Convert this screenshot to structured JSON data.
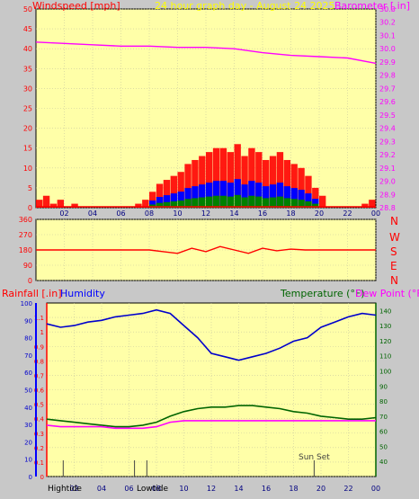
{
  "header": {
    "windspeed_label": "Windspeed [mph]",
    "title": "24 hour graph day - August 24 2025",
    "barometer_label": "Barometer [.in]"
  },
  "bottom_header": {
    "rainfall_label": "Rainfall [.in]",
    "humidity_label": "Humidity",
    "temperature_label": "Temperature (°F)",
    "dewpoint_label": "Dew Point (°F)"
  },
  "compass": [
    "N",
    "W",
    "S",
    "E",
    "N"
  ],
  "time_ticks": [
    "02",
    "04",
    "06",
    "08",
    "10",
    "12",
    "14",
    "16",
    "18",
    "20",
    "22",
    "00"
  ],
  "markers": {
    "hightide": "Hightide",
    "lowtide": "Lowtide",
    "sunset": "Sun Set"
  },
  "colors": {
    "panel_bg": "#ffffa8",
    "frame_bg": "#c8c8c8",
    "wind_avg": "#ff0000",
    "wind_gust_mid": "#0000ff",
    "wind_gust_low": "#008000",
    "barometer": "#ff00ff",
    "direction": "#ff0000",
    "humidity": "#0000cc",
    "temperature": "#006400",
    "dewpoint": "#ff00ff",
    "rain_axis": "#ff0000",
    "humid_axis": "#0000ff",
    "title": "#ffff00"
  },
  "chart_data": [
    {
      "type": "bar",
      "name": "Windspeed",
      "ylim": [
        0,
        50
      ],
      "y_ticks": [
        0,
        5,
        10,
        15,
        20,
        25,
        30,
        35,
        40,
        45,
        50
      ],
      "x_range_hours": [
        0,
        24
      ],
      "series": [
        {
          "name": "wind",
          "hours": [
            0,
            0.5,
            1,
            1.5,
            2,
            2.5,
            3,
            3.5,
            4,
            4.5,
            5,
            5.5,
            6,
            6.5,
            7,
            7.5,
            8,
            8.5,
            9,
            9.5,
            10,
            10.5,
            11,
            11.5,
            12,
            12.5,
            13,
            13.5,
            14,
            14.5,
            15,
            15.5,
            16,
            16.5,
            17,
            17.5,
            18,
            18.5,
            19,
            19.5,
            20,
            20.5,
            21,
            21.5,
            22,
            22.5,
            23,
            23.5
          ],
          "values": [
            2,
            3,
            1,
            2,
            0,
            1,
            0,
            0,
            0,
            0,
            0,
            0,
            0,
            0,
            1,
            2,
            4,
            6,
            7,
            8,
            9,
            11,
            12,
            13,
            14,
            15,
            15,
            14,
            16,
            13,
            15,
            14,
            12,
            13,
            14,
            12,
            11,
            10,
            8,
            5,
            3,
            0,
            0,
            0,
            0,
            0,
            1,
            2
          ]
        }
      ]
    },
    {
      "type": "line",
      "name": "Barometer",
      "ylim": [
        28.8,
        30.3
      ],
      "y_ticks": [
        28.8,
        28.9,
        29.0,
        29.1,
        29.2,
        29.3,
        29.4,
        29.5,
        29.6,
        29.7,
        29.8,
        29.9,
        30.0,
        30.1,
        30.2,
        30.3
      ],
      "x": [
        0,
        2,
        4,
        6,
        8,
        10,
        12,
        14,
        16,
        18,
        20,
        22,
        24
      ],
      "values": [
        30.05,
        30.04,
        30.03,
        30.02,
        30.02,
        30.01,
        30.01,
        30.0,
        29.97,
        29.95,
        29.94,
        29.93,
        29.89
      ]
    },
    {
      "type": "scatter",
      "name": "Wind Direction",
      "ylim": [
        0,
        360
      ],
      "y_ticks": [
        0,
        90,
        180,
        270,
        360
      ],
      "x": [
        0,
        2,
        4,
        6,
        8,
        9,
        10,
        11,
        12,
        13,
        14,
        15,
        16,
        17,
        18,
        19,
        20,
        22,
        24
      ],
      "values": [
        180,
        180,
        180,
        180,
        180,
        170,
        160,
        190,
        170,
        200,
        180,
        160,
        190,
        175,
        185,
        180,
        180,
        180,
        180
      ]
    },
    {
      "type": "line",
      "name": "Humidity",
      "ylim": [
        0,
        100
      ],
      "y_ticks": [
        0,
        10,
        20,
        30,
        40,
        50,
        60,
        70,
        80,
        90,
        100
      ],
      "x": [
        0,
        1,
        2,
        3,
        4,
        5,
        6,
        7,
        8,
        9,
        10,
        11,
        12,
        13,
        14,
        15,
        16,
        17,
        18,
        19,
        20,
        21,
        22,
        23,
        24
      ],
      "values": [
        88,
        86,
        87,
        89,
        90,
        92,
        93,
        94,
        96,
        94,
        87,
        80,
        71,
        69,
        67,
        69,
        71,
        74,
        78,
        80,
        86,
        89,
        92,
        94,
        93
      ]
    },
    {
      "type": "line",
      "name": "Rainfall",
      "ylim": [
        0,
        1.2
      ],
      "y_ticks": [
        0,
        0.1,
        0.2,
        0.3,
        0.4,
        0.5,
        0.6,
        0.7,
        0.8,
        0.9,
        1,
        1.1
      ],
      "x": [
        0,
        24
      ],
      "values": [
        0,
        0
      ]
    },
    {
      "type": "line",
      "name": "Temperature",
      "ylim": [
        30,
        145
      ],
      "y_ticks": [
        40,
        50,
        60,
        70,
        80,
        90,
        100,
        110,
        120,
        130,
        140
      ],
      "x": [
        0,
        1,
        2,
        3,
        4,
        5,
        6,
        7,
        8,
        9,
        10,
        11,
        12,
        13,
        14,
        15,
        16,
        17,
        18,
        19,
        20,
        21,
        22,
        23,
        24
      ],
      "values": [
        68,
        67,
        66,
        65,
        64,
        63,
        63,
        64,
        66,
        70,
        73,
        75,
        76,
        76,
        77,
        77,
        76,
        75,
        73,
        72,
        70,
        69,
        68,
        68,
        69
      ]
    },
    {
      "type": "line",
      "name": "Dew Point",
      "ylim": [
        30,
        145
      ],
      "y_ticks": [
        40,
        50,
        60,
        70,
        80,
        90,
        100,
        110,
        120,
        130,
        140
      ],
      "x": [
        0,
        1,
        2,
        3,
        4,
        5,
        6,
        7,
        8,
        9,
        10,
        11,
        12,
        13,
        14,
        15,
        16,
        17,
        18,
        19,
        20,
        21,
        22,
        23,
        24
      ],
      "values": [
        64,
        63,
        63,
        63,
        63,
        62,
        62,
        62,
        63,
        66,
        67,
        67,
        67,
        67,
        67,
        67,
        67,
        67,
        67,
        67,
        67,
        67,
        67,
        67,
        67
      ]
    }
  ]
}
